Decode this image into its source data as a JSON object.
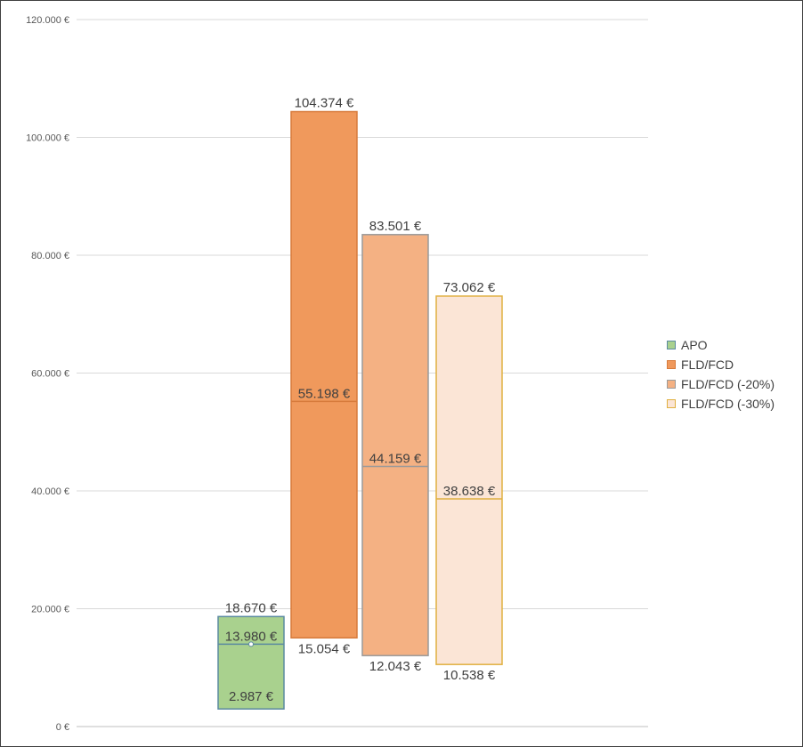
{
  "chart_data": {
    "type": "bar",
    "subtype": "floating-range",
    "title": "",
    "xlabel": "",
    "ylabel": "",
    "ylim": [
      0,
      120000
    ],
    "y_ticks": [
      {
        "value": 0,
        "label": "0 €"
      },
      {
        "value": 20000,
        "label": "20.000 €"
      },
      {
        "value": 40000,
        "label": "40.000 €"
      },
      {
        "value": 60000,
        "label": "60.000 €"
      },
      {
        "value": 80000,
        "label": "80.000 €"
      },
      {
        "value": 100000,
        "label": "100.000 €"
      },
      {
        "value": 120000,
        "label": "120.000 €"
      }
    ],
    "grid": true,
    "legend_position": "right",
    "series": [
      {
        "name": "APO",
        "fill": "#a9d18e",
        "stroke": "#5b8aa0",
        "min": 2987,
        "mid": 13980,
        "max": 18670,
        "min_label": "2.987 €",
        "mid_label": "13.980 €",
        "max_label": "18.670 €"
      },
      {
        "name": "FLD/FCD",
        "fill": "#f0995c",
        "stroke": "#d77b3c",
        "min": 15054,
        "mid": 55198,
        "max": 104374,
        "min_label": "15.054 €",
        "mid_label": "55.198 €",
        "max_label": "104.374 €"
      },
      {
        "name": "FLD/FCD (-20%)",
        "fill": "#f4b183",
        "stroke": "#9a9a9a",
        "min": 12043,
        "mid": 44159,
        "max": 83501,
        "min_label": "12.043 €",
        "mid_label": "44.159 €",
        "max_label": "83.501 €"
      },
      {
        "name": "FLD/FCD (-30%)",
        "fill": "#fbe5d6",
        "stroke": "#e0b040",
        "min": 10538,
        "mid": 38638,
        "max": 73062,
        "min_label": "10.538 €",
        "mid_label": "38.638 €",
        "max_label": "73.062 €"
      }
    ]
  }
}
